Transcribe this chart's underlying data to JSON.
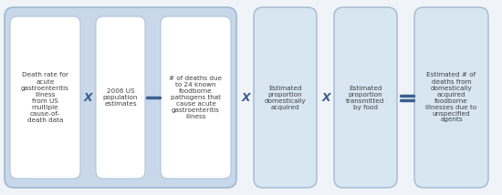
{
  "background_color": "#f0f4f8",
  "group_box_fill": "#c8d8ea",
  "group_box_stroke": "#a0b8d0",
  "inner_box_fill": "#ffffff",
  "inner_box_stroke": "#b0c4d8",
  "standalone_box_fill": "#d8e6f2",
  "standalone_box_stroke": "#a0b8d0",
  "operator_color": "#3a6090",
  "text_color": "#404040",
  "boxes": [
    "Death rate for\nacute\ngastroenteritis\nillness\nfrom US\nmultiple\ncause-of-\ndeath data",
    "2006 US\npopulation\nestimates",
    "# of deaths due\nto 24 known\nfoodborne\npathogens that\ncause acute\ngastroenteritis\nillness",
    "Estimated\nproportion\ndomestically\nacquired",
    "Estimated\nproportion\ntransmitted\nby food",
    "Estimated # of\ndeaths from\ndomestically\nacquired\nfoodborne\nillnesses due to\nunspecified\nagents"
  ],
  "operators": [
    "×",
    "–",
    "×",
    "×",
    "="
  ],
  "fig_width": 5.5,
  "fig_height": 2.14,
  "dpi": 100,
  "font_size": 5.2
}
